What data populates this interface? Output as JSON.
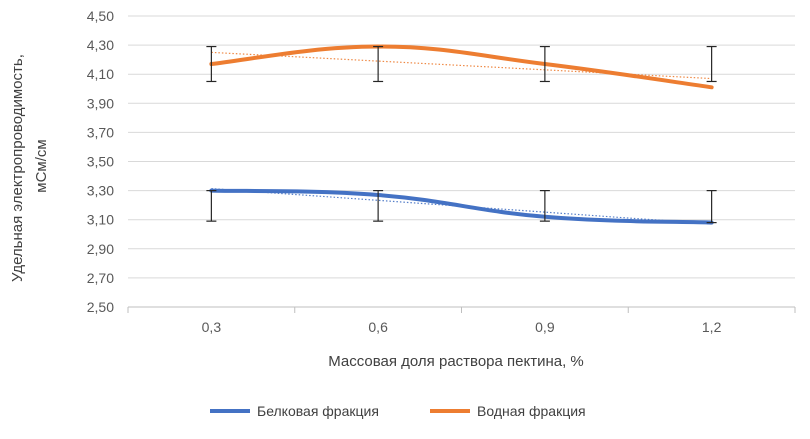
{
  "chart_data": {
    "type": "line",
    "title": "",
    "xlabel": "Массовая доля раствора пектина, %",
    "ylabel_lines": [
      "Удельная электропроводимость,",
      "мСм/см"
    ],
    "categories": [
      "0,3",
      "0,6",
      "0,9",
      "1,2"
    ],
    "ylim": [
      2.5,
      4.5
    ],
    "ytick_step": 0.2,
    "ytick_labels": [
      "2,50",
      "2,70",
      "2,90",
      "3,10",
      "3,30",
      "3,50",
      "3,70",
      "3,90",
      "4,10",
      "4,30",
      "4,50"
    ],
    "grid": "horizontal",
    "legend_position": "bottom",
    "trendlines": "linear, dotted",
    "series": [
      {
        "name": "Белковая фракция",
        "color": "#4472C4",
        "values": [
          3.3,
          3.27,
          3.12,
          3.08
        ],
        "error_low": [
          3.09,
          3.09,
          3.09,
          3.08
        ],
        "error_high": [
          3.3,
          3.3,
          3.3,
          3.3
        ]
      },
      {
        "name": "Водная фракция",
        "color": "#ED7D31",
        "values": [
          4.17,
          4.29,
          4.17,
          4.01
        ],
        "error_low": [
          4.05,
          4.05,
          4.05,
          4.05
        ],
        "error_high": [
          4.29,
          4.29,
          4.29,
          4.29
        ]
      }
    ]
  }
}
